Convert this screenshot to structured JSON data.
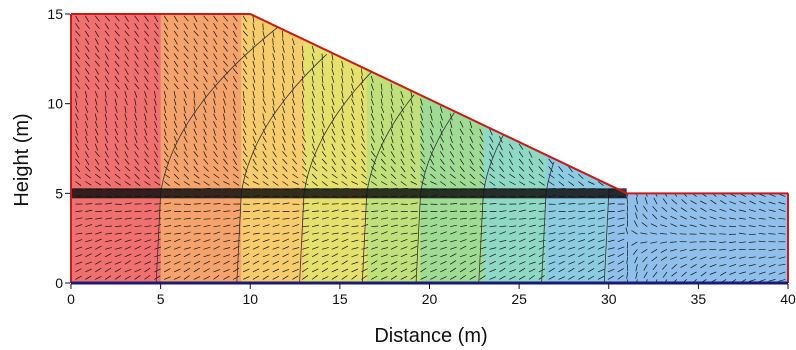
{
  "chart_data": {
    "type": "contour-vector-field",
    "xlabel": "Distance (m)",
    "ylabel": "Height (m)",
    "xlim": [
      0,
      40
    ],
    "ylim": [
      0,
      15
    ],
    "x_ticks": [
      0,
      5,
      10,
      15,
      20,
      25,
      30,
      35,
      40
    ],
    "y_ticks": [
      0,
      5,
      10,
      15
    ],
    "x_tick_labels": [
      "0",
      "5",
      "10",
      "15",
      "20",
      "25",
      "30",
      "35",
      "40"
    ],
    "y_tick_labels": [
      "0",
      "5",
      "10",
      "15"
    ],
    "embankment_profile": [
      [
        0,
        0
      ],
      [
        0,
        15
      ],
      [
        10,
        15
      ],
      [
        31,
        5
      ],
      [
        40,
        5
      ],
      [
        40,
        0
      ]
    ],
    "drain_layer": {
      "y": 5,
      "x_start": 0,
      "x_end": 31
    },
    "equipotential_lines_x_at_base": [
      5,
      9.5,
      13,
      16.5,
      19.5,
      23,
      26.5,
      30
    ],
    "color_zones": [
      {
        "x_from": 0,
        "x_to": 5,
        "color": "#f06f6f"
      },
      {
        "x_from": 5,
        "x_to": 9.5,
        "color": "#f4a36c"
      },
      {
        "x_from": 9.5,
        "x_to": 13,
        "color": "#f6cc6c"
      },
      {
        "x_from": 13,
        "x_to": 16.5,
        "color": "#e6e06c"
      },
      {
        "x_from": 16.5,
        "x_to": 19.5,
        "color": "#bfe07a"
      },
      {
        "x_from": 19.5,
        "x_to": 23,
        "color": "#9fdb95"
      },
      {
        "x_from": 23,
        "x_to": 26.5,
        "color": "#8fd8c4"
      },
      {
        "x_from": 26.5,
        "x_to": 30,
        "color": "#8ccbe2"
      },
      {
        "x_from": 30,
        "x_to": 40,
        "color": "#8fbfea"
      }
    ],
    "boundary_color": "#cc1a1a",
    "base_color": "#1a1a7a",
    "grid": false
  }
}
